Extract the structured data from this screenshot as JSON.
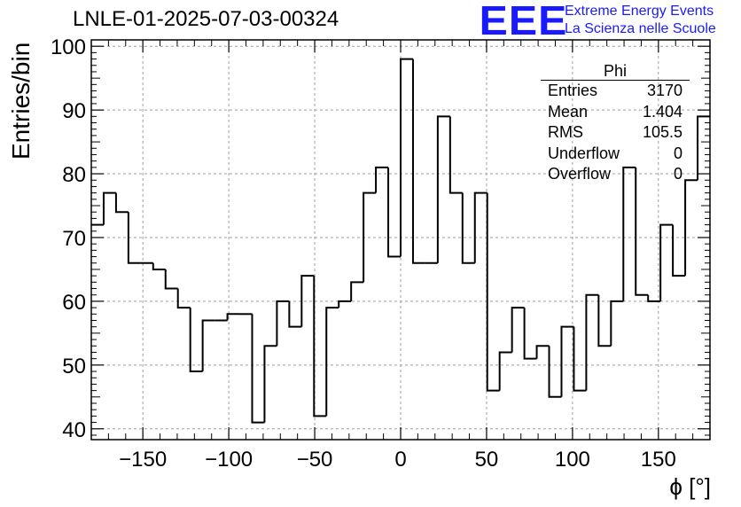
{
  "header": {
    "title": "LNLE-01-2025-07-03-00324",
    "logo_text": "EEE",
    "logo_line1": "Extreme Energy Events",
    "logo_line2": "La Scienza nelle Scuole"
  },
  "stats": {
    "title": "Phi",
    "rows": [
      {
        "label": "Entries",
        "value": "3170"
      },
      {
        "label": "Mean",
        "value": "1.404"
      },
      {
        "label": "RMS",
        "value": "105.5"
      },
      {
        "label": "Underflow",
        "value": "0"
      },
      {
        "label": "Overflow",
        "value": "0"
      }
    ]
  },
  "chart_data": {
    "type": "bar",
    "style": "step-histogram",
    "title": "LNLE-01-2025-07-03-00324",
    "xlabel": "ϕ [°]",
    "ylabel": "Entries/bin",
    "xlim": [
      -180,
      180
    ],
    "ylim": [
      38.3,
      101
    ],
    "bin_width": 7.2,
    "x_ticks": [
      -150,
      -100,
      -50,
      0,
      50,
      100,
      150
    ],
    "y_ticks": [
      40,
      50,
      60,
      70,
      80,
      90,
      100
    ],
    "grid": true,
    "values": [
      72,
      77,
      74,
      66,
      66,
      65,
      62,
      59,
      49,
      57,
      57,
      58,
      58,
      41,
      53,
      60,
      56,
      64,
      42,
      59,
      60,
      63,
      77,
      81,
      67,
      98,
      66,
      66,
      89,
      77,
      66,
      77,
      46,
      52,
      59,
      51,
      53,
      45,
      56,
      46,
      61,
      53,
      60,
      81,
      61,
      60,
      72,
      64,
      79,
      89
    ],
    "colors": {
      "line": "#000000",
      "grid": "#a0a0a0",
      "logo": "#1a1aff"
    }
  }
}
